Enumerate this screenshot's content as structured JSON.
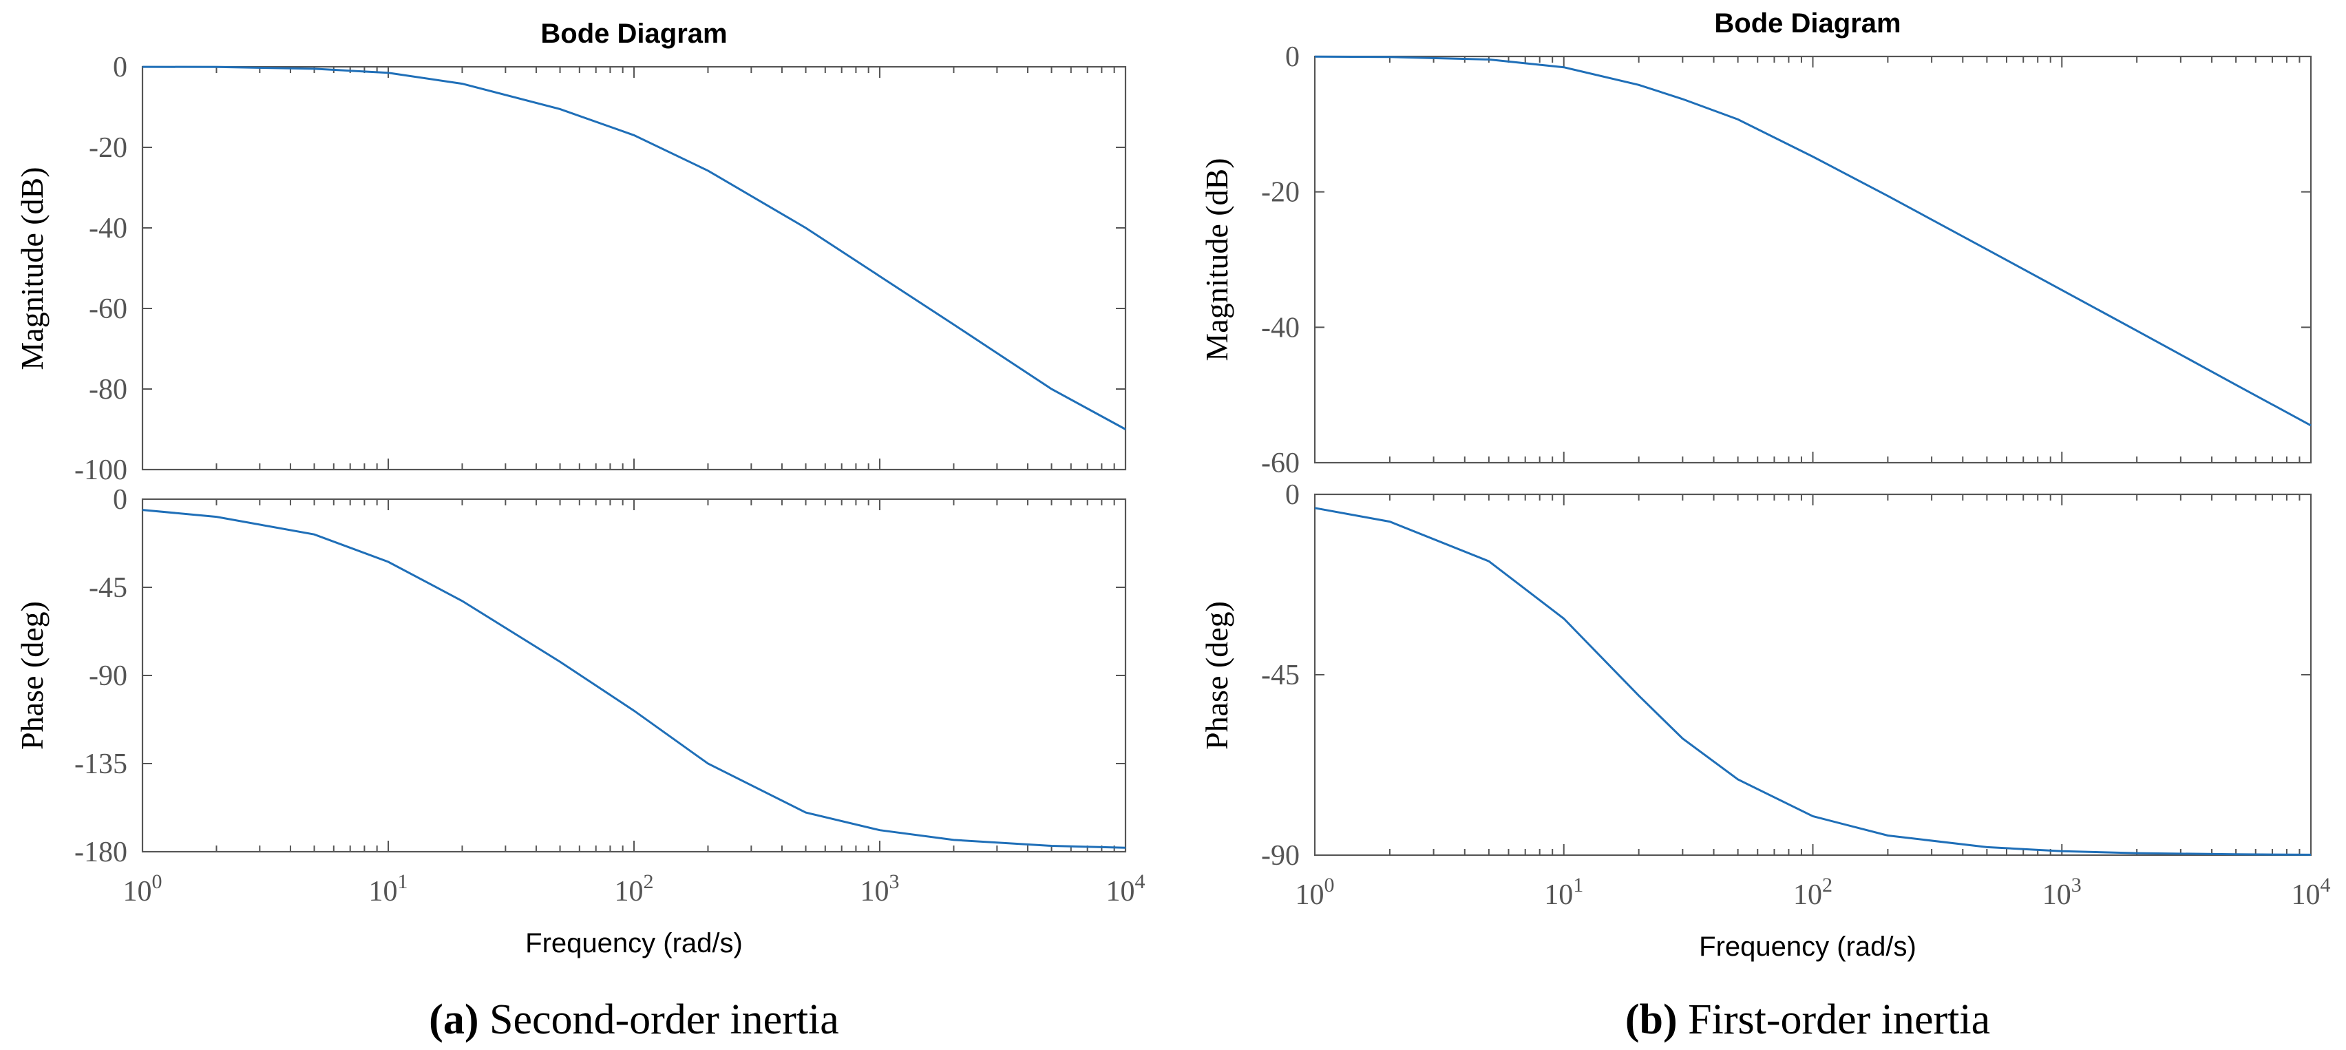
{
  "chart_data": [
    {
      "type": "line",
      "title": "Bode Diagram",
      "caption_label": "(a)",
      "caption_text": "Second-order inertia",
      "xlabel": "Frequency  (rad/s)",
      "xscale": "log",
      "xlim": [
        1,
        10000
      ],
      "xticks": [
        {
          "base": "10",
          "exp": "0"
        },
        {
          "base": "10",
          "exp": "1"
        },
        {
          "base": "10",
          "exp": "2"
        },
        {
          "base": "10",
          "exp": "3"
        },
        {
          "base": "10",
          "exp": "4"
        }
      ],
      "magnitude": {
        "ylabel": "Magnitude (dB)",
        "ylim": [
          -100,
          0
        ],
        "yticks": [
          0,
          -20,
          -40,
          -60,
          -80,
          -100
        ],
        "x": [
          1,
          2,
          5,
          10,
          20,
          50,
          100,
          200,
          500,
          1000,
          2000,
          5000,
          10000
        ],
        "y": [
          -0.01,
          -0.05,
          -0.5,
          -1.5,
          -4.2,
          -10.5,
          -17.0,
          -25.8,
          -40.0,
          -52.0,
          -64.0,
          -80.0,
          -90.0
        ]
      },
      "phase": {
        "ylabel": "Phase (deg)",
        "ylim": [
          -180,
          0
        ],
        "yticks": [
          0,
          -45,
          -90,
          -135,
          -180
        ],
        "x": [
          1,
          2,
          5,
          10,
          20,
          50,
          100,
          200,
          500,
          1000,
          2000,
          5000,
          10000
        ],
        "y": [
          -5.5,
          -9.0,
          -18.0,
          -32.0,
          -52.0,
          -83.0,
          -108.0,
          -135.0,
          -160.0,
          -169.0,
          -174.0,
          -177.0,
          -178.0
        ]
      }
    },
    {
      "type": "line",
      "title": "Bode Diagram",
      "caption_label": "(b)",
      "caption_text": "First-order inertia",
      "xlabel": "Frequency  (rad/s)",
      "xscale": "log",
      "xlim": [
        1,
        10000
      ],
      "xticks": [
        {
          "base": "10",
          "exp": "0"
        },
        {
          "base": "10",
          "exp": "1"
        },
        {
          "base": "10",
          "exp": "2"
        },
        {
          "base": "10",
          "exp": "3"
        },
        {
          "base": "10",
          "exp": "4"
        }
      ],
      "magnitude": {
        "ylabel": "Magnitude (dB)",
        "ylim": [
          -60,
          0
        ],
        "yticks": [
          0,
          -20,
          -40,
          -60
        ],
        "x": [
          1,
          2,
          5,
          10,
          20,
          30,
          50,
          100,
          200,
          500,
          1000,
          2000,
          5000,
          10000
        ],
        "y": [
          -0.02,
          -0.08,
          -0.45,
          -1.6,
          -4.2,
          -6.3,
          -9.3,
          -14.8,
          -20.6,
          -28.5,
          -34.5,
          -40.5,
          -48.5,
          -54.5
        ]
      },
      "phase": {
        "ylabel": "Phase (deg)",
        "ylim": [
          -90,
          0
        ],
        "yticks": [
          0,
          -45,
          -90
        ],
        "x": [
          1,
          2,
          5,
          10,
          20,
          30,
          50,
          100,
          200,
          500,
          1000,
          2000,
          5000,
          10000
        ],
        "y": [
          -3.4,
          -6.8,
          -16.7,
          -31.0,
          -50.2,
          -60.9,
          -71.1,
          -80.3,
          -85.1,
          -88.0,
          -89.0,
          -89.5,
          -89.8,
          -89.9
        ]
      }
    }
  ]
}
